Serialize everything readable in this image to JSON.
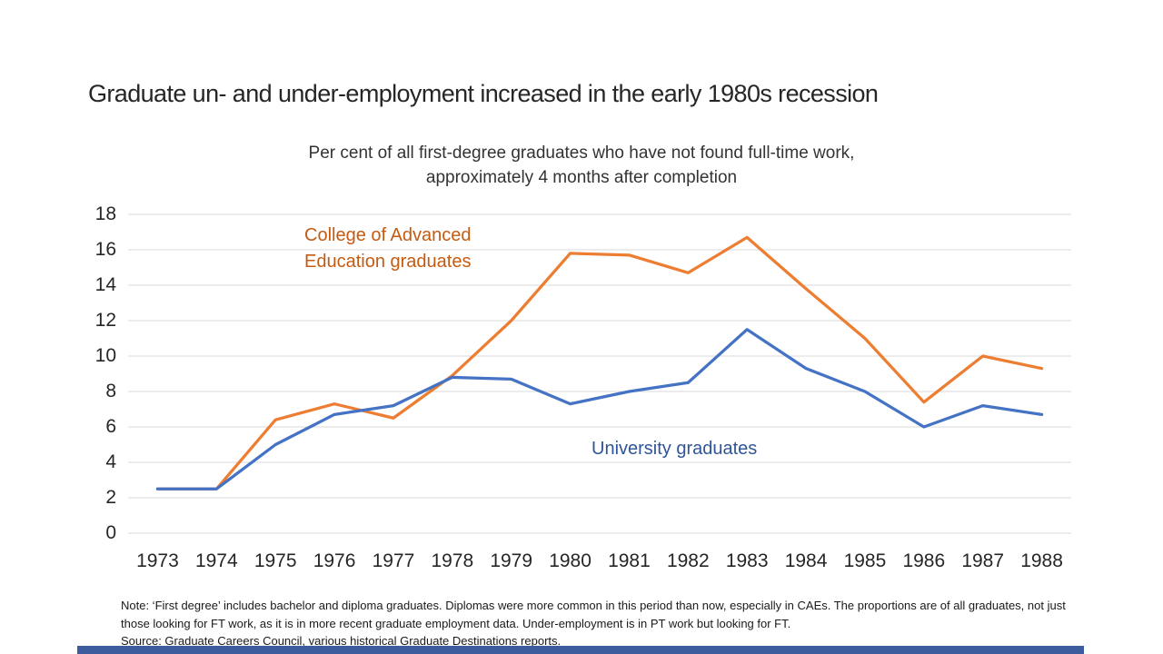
{
  "slide": {
    "title": "Graduate un- and under-employment increased in the early 1980s recession",
    "subtitle_line1": "Per cent of all first-degree graduates who have not found full-time work,",
    "subtitle_line2": "approximately 4 months after completion",
    "note": "Note: ‘First degree’ includes bachelor and diploma graduates. Diplomas were more common in this period than now, especially in CAEs. The proportions are of all graduates, not just those looking for FT work, as it is in more recent graduate employment data. Under-employment is in PT work but looking for FT.",
    "source": "Source: Graduate Careers Council, various historical Graduate Destinations reports.",
    "accent_bar_color": "#3D5C9E",
    "text_color": "#262626"
  },
  "chart_data": {
    "type": "line",
    "categories": [
      "1973",
      "1974",
      "1975",
      "1976",
      "1977",
      "1978",
      "1979",
      "1980",
      "1981",
      "1982",
      "1983",
      "1984",
      "1985",
      "1986",
      "1987",
      "1988"
    ],
    "series": [
      {
        "key": "cae",
        "name": "College of Advanced Education graduates",
        "label_lines": [
          "College of Advanced",
          "Education graduates"
        ],
        "color": "#ED7D31",
        "label_color": "#C55A11",
        "values": [
          2.5,
          2.5,
          6.4,
          7.3,
          6.5,
          8.9,
          12.0,
          15.8,
          15.7,
          14.7,
          16.7,
          13.8,
          11.0,
          7.4,
          10.0,
          9.3
        ]
      },
      {
        "key": "university",
        "name": "University graduates",
        "label_lines": [
          "University graduates"
        ],
        "color": "#4472C4",
        "label_color": "#2F5597",
        "values": [
          2.5,
          2.5,
          5.0,
          6.7,
          7.2,
          8.8,
          8.7,
          7.3,
          8.0,
          8.5,
          11.5,
          9.3,
          8.0,
          6.0,
          7.2,
          6.7
        ]
      }
    ],
    "title": "Graduate un- and under-employment increased in the early 1980s recession",
    "subtitle": "Per cent of all first-degree graduates who have not found full-time work, approximately 4 months after completion",
    "xlabel": "",
    "ylabel": "",
    "ylim": [
      0,
      18
    ],
    "ytick_step": 2,
    "grid": "horizontal",
    "gridline_color": "#D9D9D9",
    "legend_position": "inline-annotations"
  }
}
